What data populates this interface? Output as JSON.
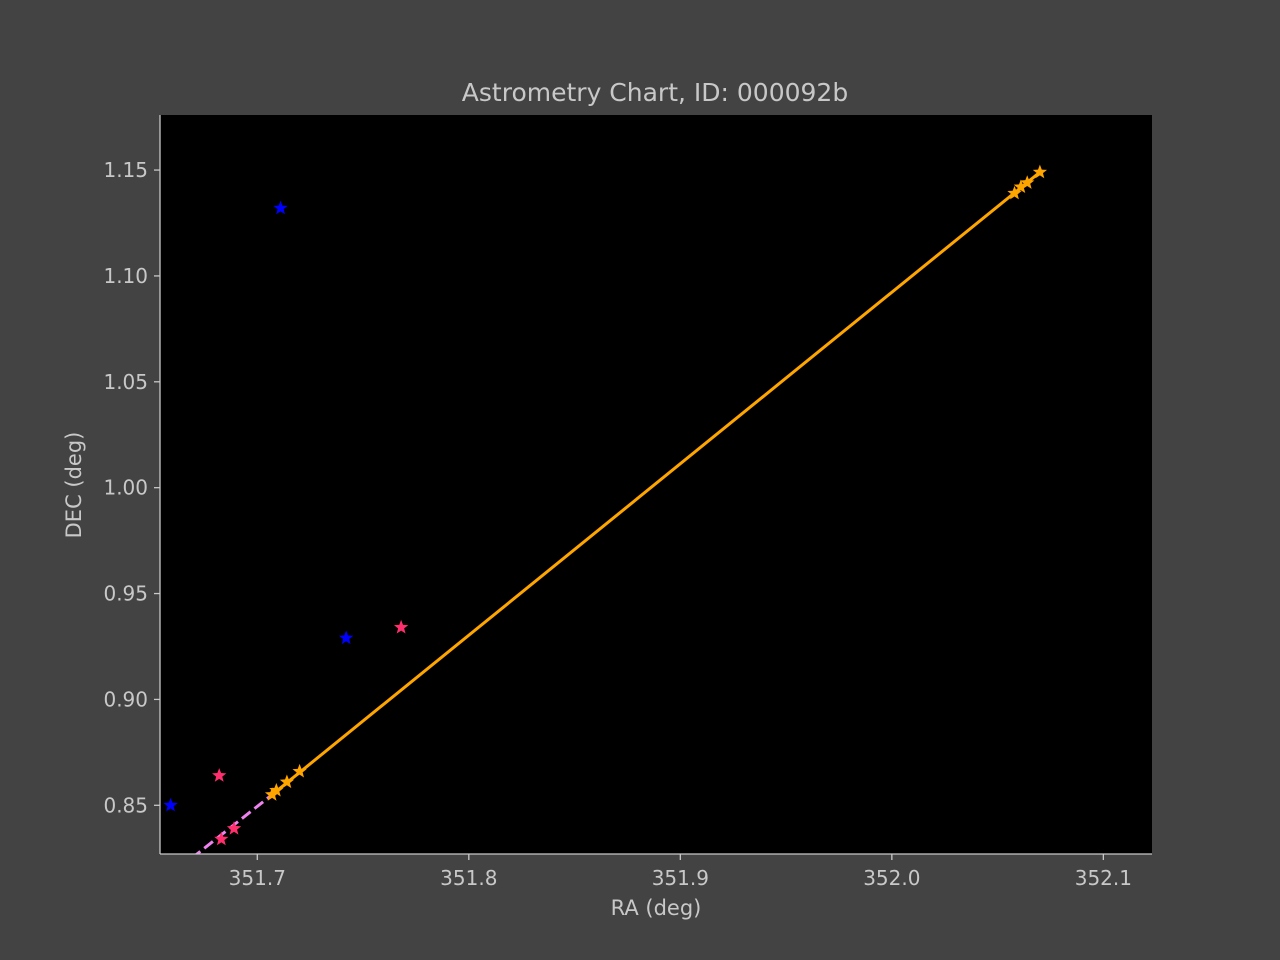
{
  "chart_data": {
    "type": "scatter",
    "title": "Astrometry Chart, ID: 000092b",
    "xlabel": "RA (deg)",
    "ylabel": "DEC (deg)",
    "xlim": [
      351.654,
      352.123
    ],
    "ylim": [
      0.827,
      1.176
    ],
    "xticks": [
      351.7,
      351.8,
      351.9,
      352.0,
      352.1
    ],
    "xtick_labels": [
      "351.7",
      "351.8",
      "351.9",
      "352.0",
      "352.1"
    ],
    "yticks": [
      0.85,
      0.9,
      0.95,
      1.0,
      1.05,
      1.1,
      1.15
    ],
    "ytick_labels": [
      "0.85",
      "0.90",
      "0.95",
      "1.00",
      "1.05",
      "1.10",
      "1.15"
    ],
    "grid": false,
    "background": "#000000",
    "series": [
      {
        "color": "#0000ff",
        "marker": "star",
        "points": [
          [
            351.659,
            0.85
          ],
          [
            351.711,
            1.132
          ],
          [
            351.742,
            0.929
          ]
        ]
      },
      {
        "color": "#ff2f6e",
        "marker": "star",
        "points": [
          [
            351.682,
            0.864
          ],
          [
            351.683,
            0.834
          ],
          [
            351.689,
            0.839
          ],
          [
            351.768,
            0.934
          ]
        ]
      },
      {
        "color": "#ffa500",
        "marker": "star",
        "points": [
          [
            351.707,
            0.855
          ],
          [
            351.709,
            0.857
          ],
          [
            351.714,
            0.861
          ],
          [
            351.72,
            0.866
          ],
          [
            352.058,
            1.139
          ],
          [
            352.061,
            1.142
          ],
          [
            352.064,
            1.144
          ],
          [
            352.07,
            1.149
          ]
        ]
      }
    ],
    "lines": [
      {
        "color": "#ffa500",
        "style": "solid",
        "points": [
          [
            351.707,
            0.855
          ],
          [
            352.07,
            1.149
          ]
        ]
      },
      {
        "color": "#ee82ee",
        "style": "dashed",
        "points": [
          [
            351.669,
            0.825
          ],
          [
            351.707,
            0.855
          ]
        ]
      }
    ]
  }
}
